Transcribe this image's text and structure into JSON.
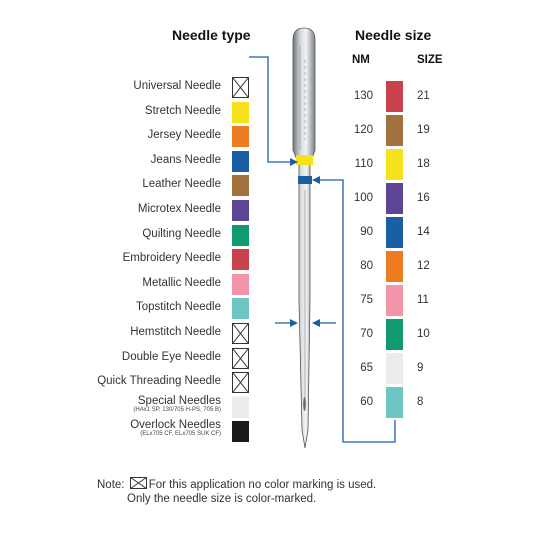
{
  "headings": {
    "needle_type": "Needle type",
    "needle_size": "Needle size",
    "nm": "NM",
    "size": "SIZE"
  },
  "needle_types": [
    {
      "label": "Universal Needle",
      "sub": "",
      "color": "none"
    },
    {
      "label": "Stretch Needle",
      "sub": "",
      "color": "#f6e21c"
    },
    {
      "label": "Jersey Needle",
      "sub": "",
      "color": "#ee7a22"
    },
    {
      "label": "Jeans Needle",
      "sub": "",
      "color": "#1a5fa3"
    },
    {
      "label": "Leather Needle",
      "sub": "",
      "color": "#a3713d"
    },
    {
      "label": "Microtex Needle",
      "sub": "",
      "color": "#5c4693"
    },
    {
      "label": "Quilting Needle",
      "sub": "",
      "color": "#119a72"
    },
    {
      "label": "Embroidery Needle",
      "sub": "",
      "color": "#c8414b"
    },
    {
      "label": "Metallic Needle",
      "sub": "",
      "color": "#f295a8"
    },
    {
      "label": "Topstitch Needle",
      "sub": "",
      "color": "#6ec6c4"
    },
    {
      "label": "Hemstitch Needle",
      "sub": "",
      "color": "none"
    },
    {
      "label": "Double Eye Needle",
      "sub": "",
      "color": "none"
    },
    {
      "label": "Quick Threading Needle",
      "sub": "",
      "color": "none"
    },
    {
      "label": "Special Needles",
      "sub": "(HAx1 SP, 130/705 H-PS, 705 B)",
      "color": "#ececec"
    },
    {
      "label": "Overlock Needles",
      "sub": "(ELx705 CF, ELx705 SUK CF)",
      "color": "#1a1a1a"
    }
  ],
  "needle_sizes": [
    {
      "nm": "130",
      "size": "21",
      "color": "#c8414b"
    },
    {
      "nm": "120",
      "size": "19",
      "color": "#a3713d"
    },
    {
      "nm": "110",
      "size": "18",
      "color": "#f6e21c"
    },
    {
      "nm": "100",
      "size": "16",
      "color": "#5c4693"
    },
    {
      "nm": "90",
      "size": "14",
      "color": "#1a5fa3"
    },
    {
      "nm": "80",
      "size": "12",
      "color": "#ee7a22"
    },
    {
      "nm": "75",
      "size": "11",
      "color": "#f295a8"
    },
    {
      "nm": "70",
      "size": "10",
      "color": "#119a72"
    },
    {
      "nm": "65",
      "size": "9",
      "color": "#ececec"
    },
    {
      "nm": "60",
      "size": "8",
      "color": "#6ec6c4"
    }
  ],
  "connector_color": "#1a5fa3",
  "note": {
    "prefix": "Note:",
    "line1": "For this application no color marking is used.",
    "line2": "Only the needle size is color-marked."
  }
}
